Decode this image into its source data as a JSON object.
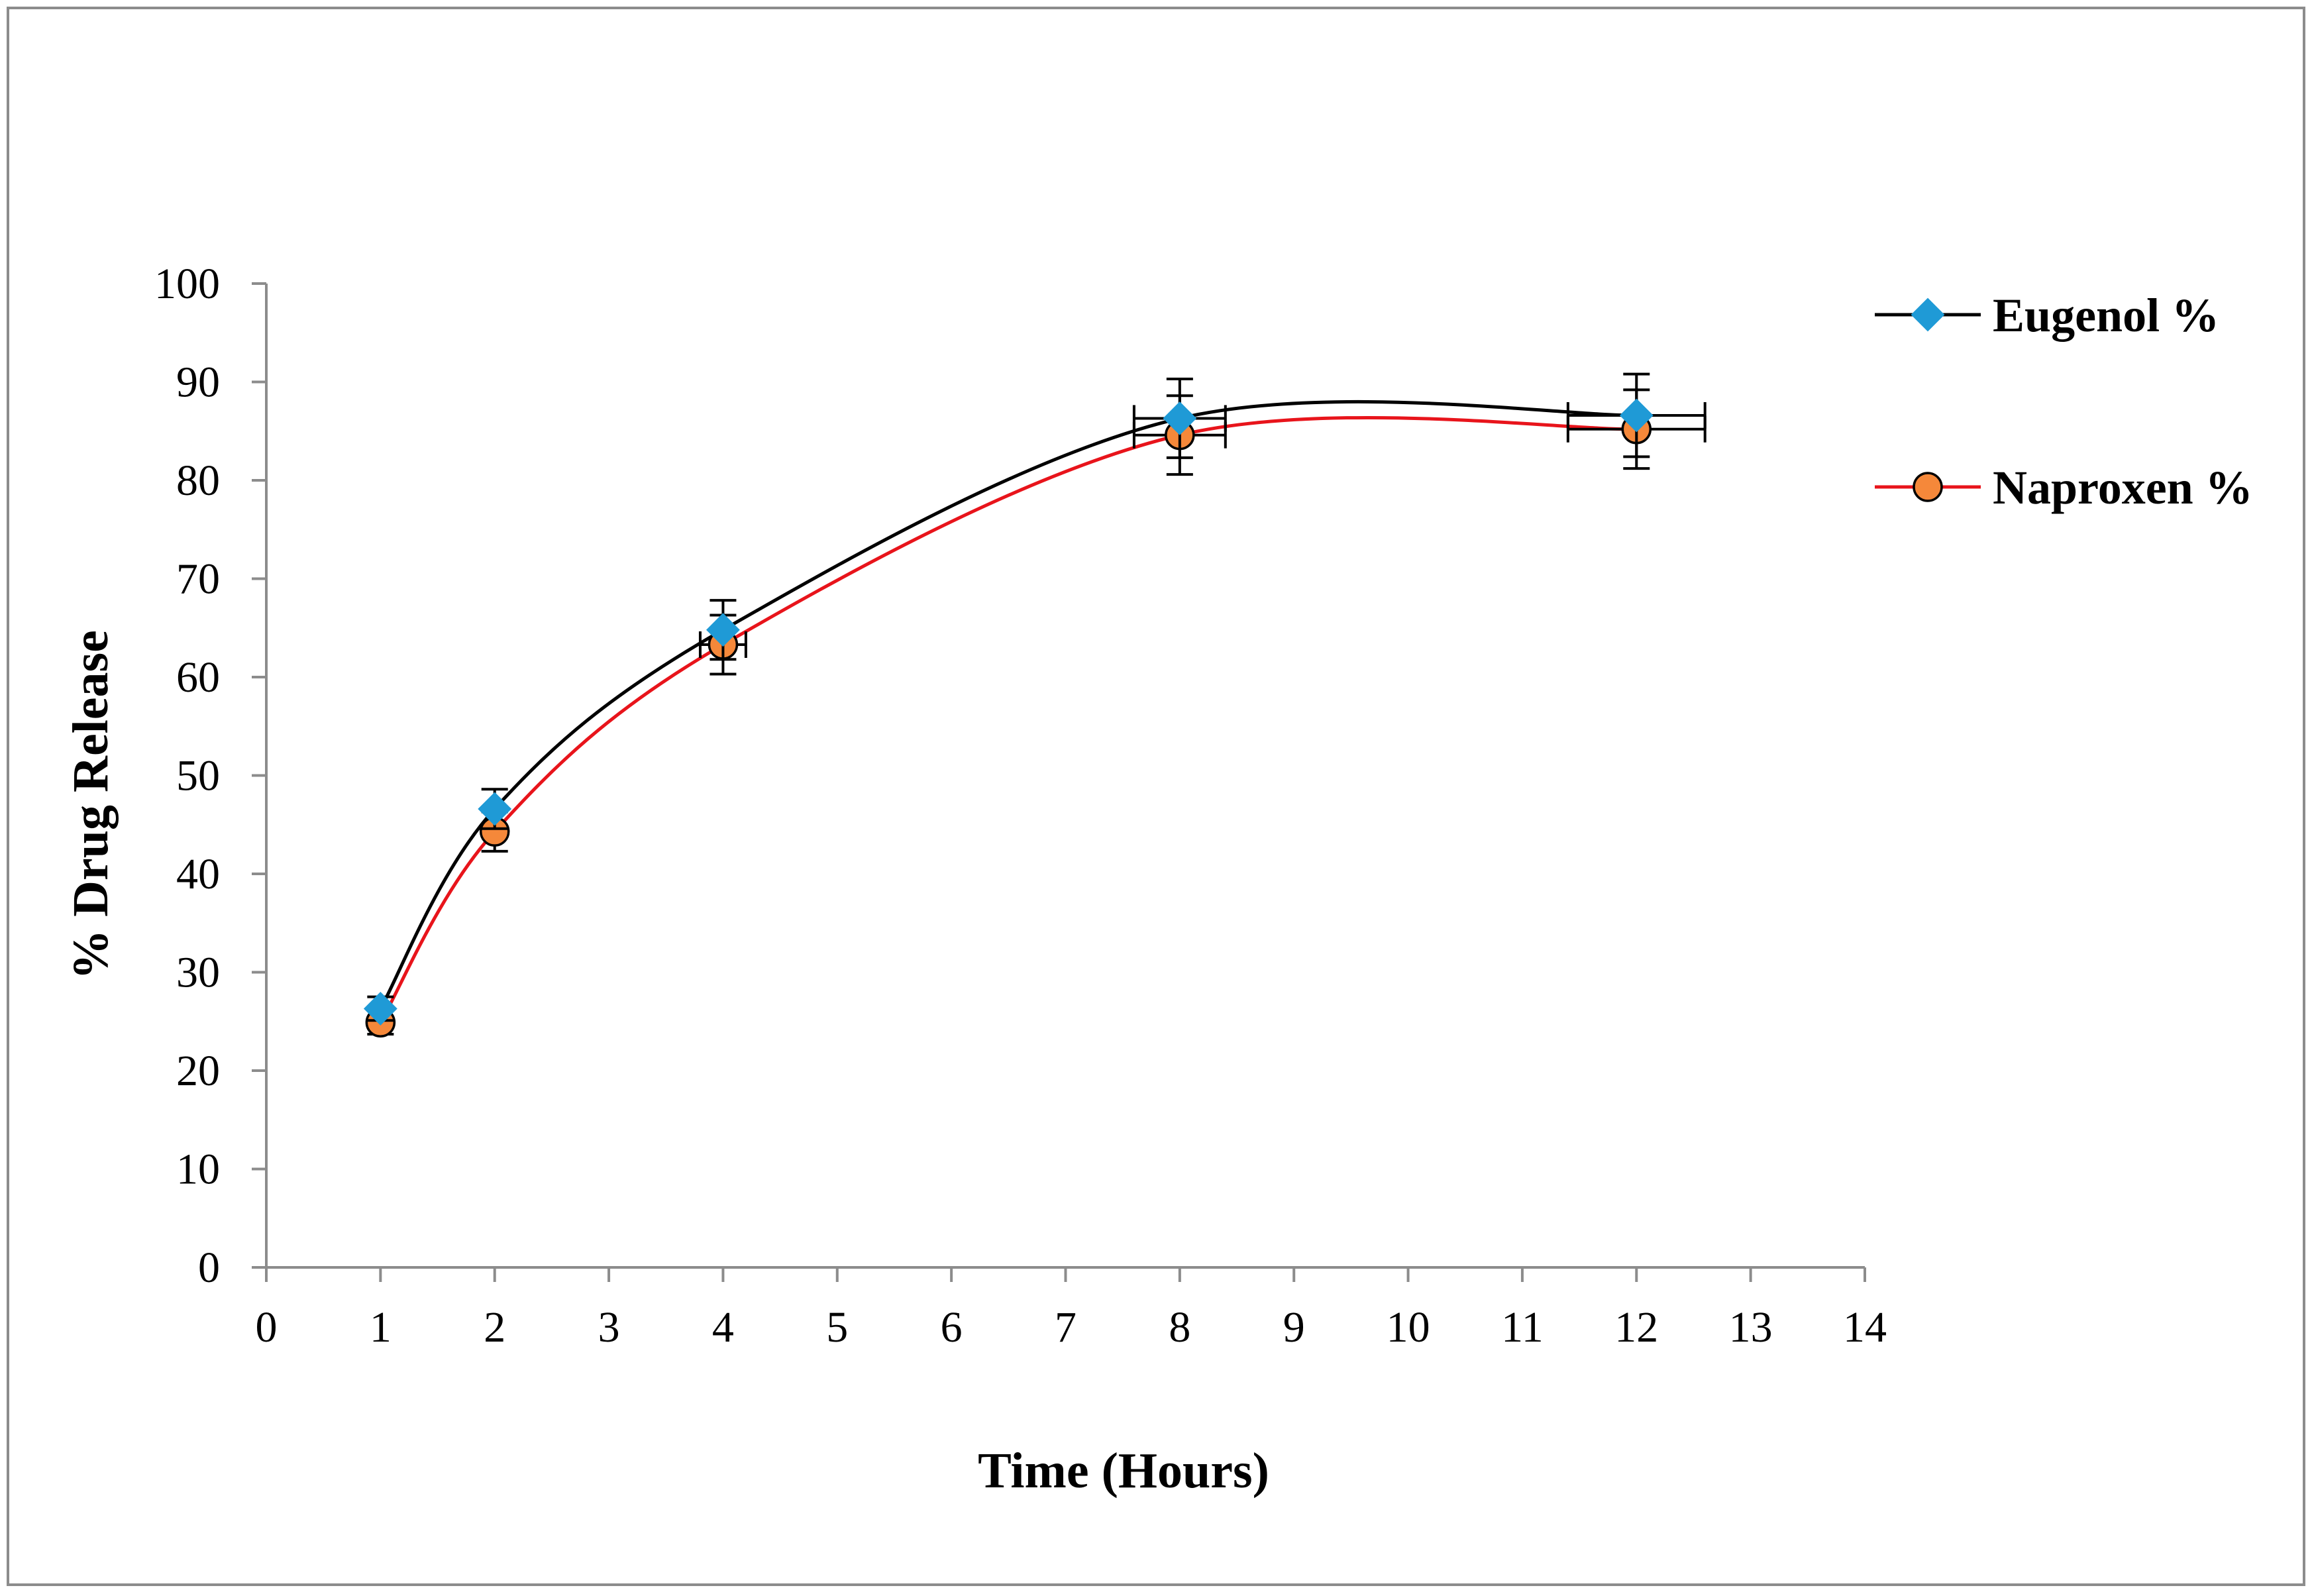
{
  "chart_data": {
    "type": "line",
    "smooth": true,
    "title": "",
    "xlabel": "Time (Hours)",
    "ylabel": "% Drug Release",
    "xlim": [
      0,
      14
    ],
    "ylim": [
      0,
      100
    ],
    "xticks": [
      0,
      1,
      2,
      3,
      4,
      5,
      6,
      7,
      8,
      9,
      10,
      11,
      12,
      13,
      14
    ],
    "yticks": [
      0,
      10,
      20,
      30,
      40,
      50,
      60,
      70,
      80,
      90,
      100
    ],
    "grid": false,
    "legend_position": "right",
    "series": [
      {
        "name": "Eugenol  %",
        "line_color": "#000000",
        "marker": "diamond",
        "marker_color": "#1f9ad6",
        "x": [
          1,
          2,
          4,
          8,
          12
        ],
        "y": [
          26.3,
          46.6,
          64.8,
          86.3,
          86.6
        ],
        "y_error": [
          1.2,
          2.0,
          3.0,
          4.0,
          4.2
        ],
        "x_error": [
          0,
          0,
          0,
          0.4,
          0.6
        ]
      },
      {
        "name": "Naproxen %",
        "line_color": "#e8141b",
        "marker": "circle",
        "marker_color": "#f5883a",
        "x": [
          1,
          2,
          4,
          8,
          12
        ],
        "y": [
          24.9,
          44.3,
          63.3,
          84.6,
          85.2
        ],
        "y_error": [
          1.2,
          2.0,
          3.0,
          4.0,
          4.0
        ],
        "x_error": [
          0,
          0,
          0.2,
          0.4,
          0.6
        ]
      }
    ]
  }
}
